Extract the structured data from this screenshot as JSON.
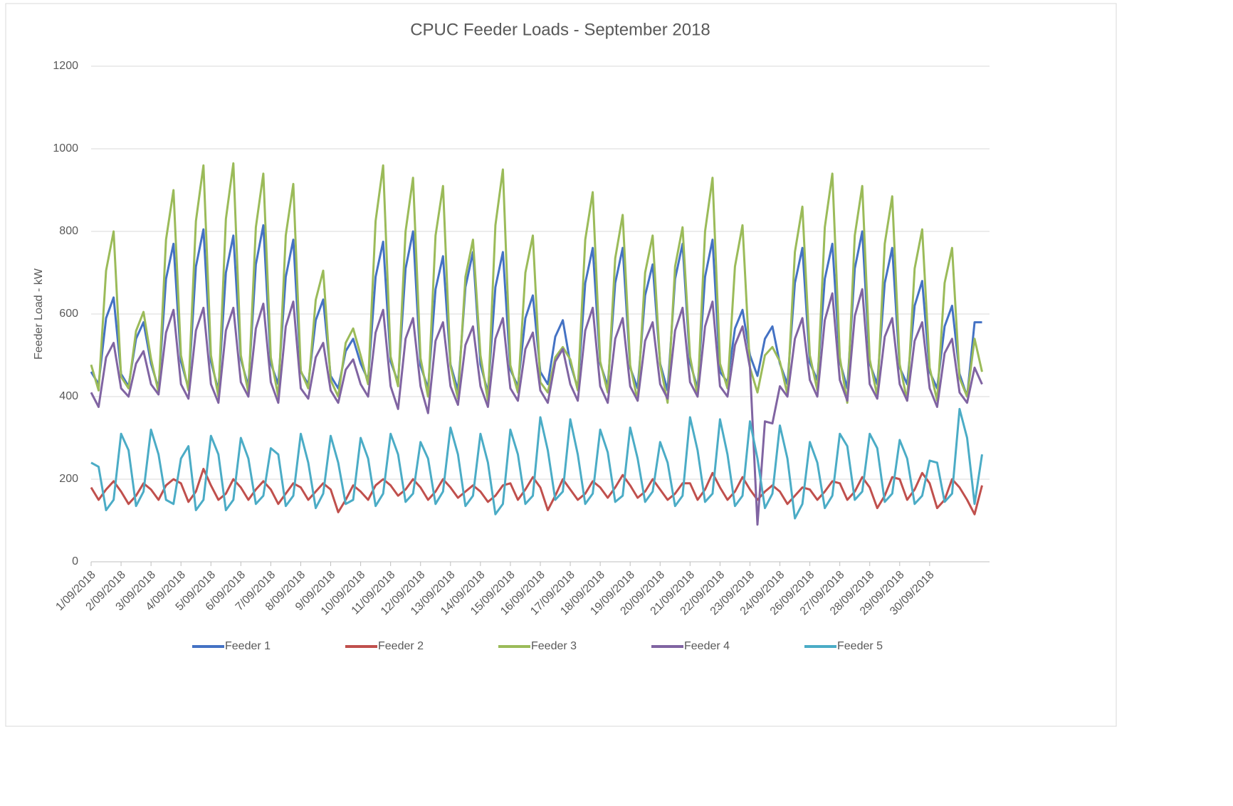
{
  "chart_data": {
    "type": "line",
    "title": "CPUC Feeder Loads - September 2018",
    "y_label": "Feeder Load - kW",
    "categories": [
      "1/09/2018",
      null,
      null,
      null,
      "2/09/2018",
      null,
      null,
      null,
      "3/09/2018",
      null,
      null,
      null,
      "4/09/2018",
      null,
      null,
      null,
      "5/09/2018",
      null,
      null,
      null,
      "6/09/2018",
      null,
      null,
      null,
      "7/09/2018",
      null,
      null,
      null,
      "8/09/2018",
      null,
      null,
      null,
      "9/09/2018",
      null,
      null,
      null,
      "10/09/2018",
      null,
      null,
      null,
      "11/09/2018",
      null,
      null,
      null,
      "12/09/2018",
      null,
      null,
      null,
      "13/09/2018",
      null,
      null,
      null,
      "14/09/2018",
      null,
      null,
      null,
      "15/09/2018",
      null,
      null,
      null,
      "16/09/2018",
      null,
      null,
      null,
      "17/09/2018",
      null,
      null,
      null,
      "18/09/2018",
      null,
      null,
      null,
      "19/09/2018",
      null,
      null,
      null,
      "20/09/2018",
      null,
      null,
      null,
      "21/09/2018",
      null,
      null,
      null,
      "22/09/2018",
      null,
      null,
      null,
      "23/09/2018",
      null,
      null,
      null,
      "24/09/2018",
      null,
      null,
      null,
      "26/09/2018",
      null,
      null,
      null,
      "27/09/2018",
      null,
      null,
      null,
      "28/09/2018",
      null,
      null,
      null,
      "29/09/2018",
      null,
      null,
      null,
      "30/09/2018",
      null,
      null,
      null,
      null,
      null,
      null,
      null
    ],
    "series": [
      {
        "name": "Feeder 1",
        "color": "#4472c4",
        "values": [
          460,
          430,
          590,
          640,
          455,
          425,
          540,
          580,
          480,
          420,
          685,
          770,
          485,
          420,
          715,
          805,
          485,
          415,
          700,
          790,
          490,
          425,
          720,
          815,
          480,
          430,
          690,
          780,
          460,
          430,
          585,
          635,
          450,
          420,
          510,
          540,
          480,
          440,
          690,
          775,
          485,
          435,
          710,
          800,
          475,
          420,
          660,
          740,
          478,
          415,
          665,
          750,
          478,
          410,
          665,
          750,
          465,
          425,
          590,
          645,
          460,
          430,
          545,
          585,
          480,
          420,
          675,
          760,
          480,
          425,
          675,
          760,
          470,
          420,
          645,
          720,
          480,
          415,
          685,
          770,
          482,
          420,
          690,
          780,
          460,
          435,
          565,
          610,
          500,
          450,
          540,
          570,
          480,
          430,
          675,
          760,
          482,
          440,
          685,
          770,
          485,
          420,
          710,
          800,
          480,
          430,
          675,
          760,
          470,
          430,
          620,
          680,
          460,
          420,
          570,
          620,
          455,
          400,
          580,
          580
        ]
      },
      {
        "name": "Feeder 2",
        "color": "#c0504d",
        "values": [
          180,
          150,
          175,
          195,
          170,
          140,
          160,
          190,
          175,
          150,
          185,
          200,
          190,
          145,
          170,
          225,
          185,
          150,
          165,
          200,
          180,
          150,
          175,
          195,
          175,
          140,
          165,
          190,
          180,
          150,
          170,
          190,
          175,
          120,
          150,
          185,
          170,
          150,
          185,
          200,
          185,
          160,
          175,
          200,
          180,
          150,
          170,
          200,
          180,
          155,
          170,
          185,
          170,
          145,
          160,
          185,
          190,
          150,
          175,
          205,
          180,
          125,
          160,
          200,
          175,
          150,
          165,
          195,
          180,
          155,
          180,
          210,
          185,
          155,
          170,
          200,
          175,
          150,
          165,
          190,
          190,
          150,
          175,
          215,
          180,
          150,
          170,
          205,
          175,
          150,
          170,
          185,
          170,
          140,
          160,
          180,
          175,
          150,
          170,
          195,
          190,
          150,
          170,
          205,
          180,
          130,
          160,
          205,
          200,
          150,
          175,
          215,
          190,
          130,
          150,
          200,
          180,
          150,
          115,
          185
        ]
      },
      {
        "name": "Feeder 3",
        "color": "#9bbb59",
        "values": [
          477,
          415,
          705,
          800,
          448,
          420,
          559,
          605,
          492,
          410,
          780,
          900,
          500,
          415,
          825,
          960,
          500,
          400,
          830,
          965,
          500,
          410,
          810,
          940,
          495,
          400,
          790,
          915,
          463,
          420,
          634,
          705,
          440,
          400,
          530,
          565,
          500,
          430,
          825,
          960,
          497,
          425,
          800,
          930,
          493,
          400,
          790,
          910,
          475,
          395,
          690,
          780,
          500,
          390,
          815,
          950,
          476,
          410,
          700,
          790,
          435,
          410,
          495,
          520,
          490,
          415,
          780,
          895,
          485,
          410,
          735,
          840,
          476,
          390,
          700,
          790,
          478,
          385,
          715,
          810,
          497,
          400,
          800,
          930,
          480,
          420,
          715,
          815,
          470,
          410,
          500,
          520,
          485,
          405,
          750,
          860,
          500,
          415,
          810,
          940,
          495,
          385,
          790,
          910,
          490,
          400,
          770,
          885,
          478,
          390,
          710,
          805,
          470,
          390,
          675,
          760,
          445,
          400,
          540,
          460
        ]
      },
      {
        "name": "Feeder 4",
        "color": "#8064a2",
        "values": [
          410,
          375,
          495,
          530,
          420,
          400,
          480,
          510,
          430,
          405,
          555,
          610,
          430,
          395,
          560,
          615,
          430,
          385,
          560,
          615,
          435,
          400,
          565,
          625,
          435,
          385,
          570,
          630,
          420,
          395,
          495,
          530,
          415,
          385,
          465,
          490,
          430,
          400,
          555,
          610,
          425,
          370,
          540,
          590,
          425,
          360,
          535,
          580,
          425,
          380,
          525,
          570,
          425,
          375,
          540,
          590,
          420,
          390,
          515,
          555,
          415,
          385,
          485,
          515,
          430,
          390,
          560,
          615,
          425,
          385,
          540,
          590,
          425,
          390,
          535,
          580,
          430,
          395,
          560,
          615,
          435,
          400,
          570,
          630,
          425,
          400,
          525,
          570,
          470,
          90,
          340,
          335,
          425,
          400,
          540,
          590,
          440,
          400,
          585,
          650,
          440,
          390,
          595,
          660,
          430,
          395,
          545,
          590,
          430,
          390,
          535,
          580,
          420,
          375,
          505,
          540,
          410,
          385,
          470,
          430
        ]
      },
      {
        "name": "Feeder 5",
        "color": "#4bacc6",
        "values": [
          240,
          230,
          125,
          150,
          310,
          270,
          135,
          170,
          320,
          260,
          150,
          140,
          250,
          280,
          125,
          150,
          305,
          260,
          125,
          150,
          300,
          250,
          140,
          160,
          275,
          260,
          135,
          160,
          310,
          240,
          130,
          165,
          305,
          240,
          140,
          150,
          300,
          250,
          135,
          165,
          310,
          260,
          145,
          165,
          290,
          250,
          140,
          170,
          325,
          260,
          135,
          160,
          310,
          240,
          115,
          140,
          320,
          260,
          140,
          160,
          350,
          270,
          150,
          170,
          345,
          260,
          140,
          165,
          320,
          265,
          145,
          160,
          325,
          250,
          145,
          170,
          290,
          240,
          135,
          160,
          350,
          270,
          145,
          165,
          345,
          260,
          135,
          160,
          340,
          250,
          130,
          165,
          330,
          250,
          105,
          140,
          290,
          240,
          130,
          160,
          310,
          280,
          150,
          170,
          310,
          275,
          145,
          165,
          295,
          250,
          140,
          160,
          245,
          240,
          145,
          165,
          370,
          300,
          140,
          260
        ]
      }
    ],
    "ylim": [
      0,
      1200
    ],
    "yticks": [
      0,
      200,
      400,
      600,
      800,
      1000,
      1200
    ],
    "grid": true,
    "legend": "bottom"
  }
}
